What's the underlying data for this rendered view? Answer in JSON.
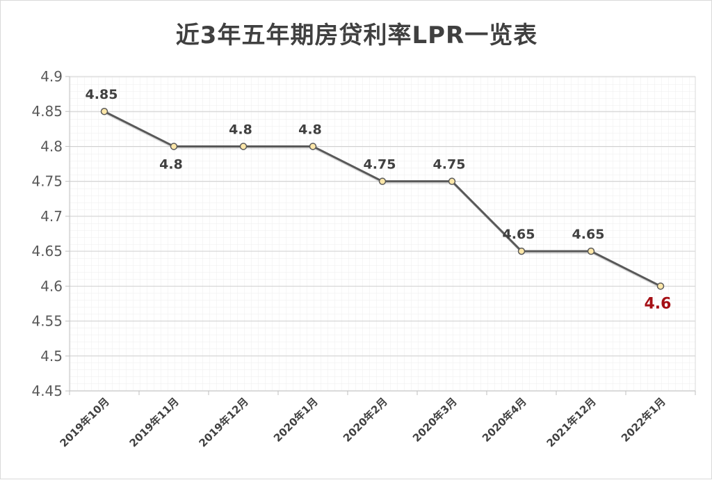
{
  "chart_data": {
    "type": "line",
    "title": "近3年五年期房贷利率LPR一览表",
    "categories": [
      "2019年10月",
      "2019年11月",
      "2019年12月",
      "2020年1月",
      "2020年2月",
      "2020年3月",
      "2020年4月",
      "2021年12月",
      "2022年1月"
    ],
    "series": [
      {
        "values": [
          4.85,
          4.8,
          4.8,
          4.8,
          4.75,
          4.75,
          4.65,
          4.65,
          4.6
        ],
        "labels": [
          "4.85",
          "4.8",
          "4.8",
          "4.8",
          "4.75",
          "4.75",
          "4.65",
          "4.65",
          "4.6"
        ],
        "line_color": "#595959",
        "marker_color": "#fde7a9"
      }
    ],
    "ylim": [
      4.45,
      4.9
    ],
    "yticks": [
      "4.9",
      "4.85",
      "4.8",
      "4.75",
      "4.7",
      "4.65",
      "4.6",
      "4.55",
      "4.5",
      "4.45"
    ],
    "xlabel": "",
    "ylabel": "",
    "grid": true,
    "highlight_last_label_color": "#a50f15"
  }
}
